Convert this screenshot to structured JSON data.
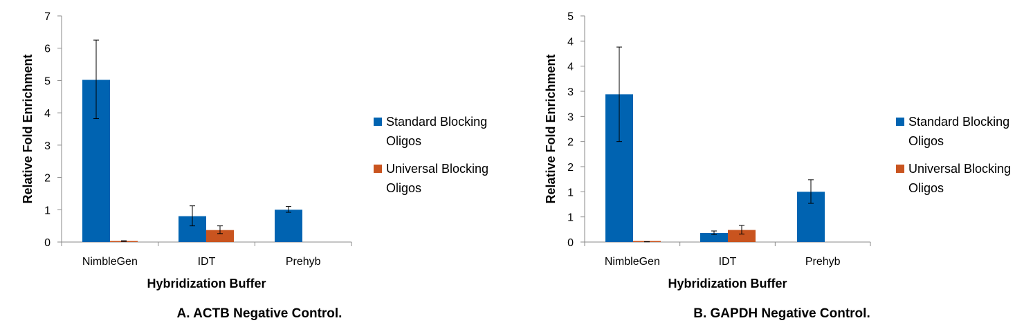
{
  "colors": {
    "standard": "#0063B1",
    "universal": "#C9541F",
    "axis": "#888888",
    "error": "#000000"
  },
  "chart_data": [
    {
      "type": "bar",
      "caption": "A. ACTB Negative Control.",
      "xlabel": "Hybridization Buffer",
      "ylabel": "Relative Fold Enrichment",
      "categories": [
        "NimbleGen",
        "IDT",
        "Prehyb"
      ],
      "ylim": [
        0,
        7
      ],
      "yticks": [
        0,
        1,
        2,
        3,
        4,
        5,
        6,
        7
      ],
      "ytick_labels": [
        "0",
        "1",
        "2",
        "3",
        "4",
        "5",
        "6",
        "7"
      ],
      "series": [
        {
          "name": "Standard Blocking Oligos",
          "legend_lines": [
            "Standard Blocking",
            "Oligos"
          ],
          "values": [
            5.02,
            0.8,
            1.0
          ],
          "err_low": [
            3.82,
            0.5,
            0.92
          ],
          "err_high": [
            6.25,
            1.12,
            1.1
          ]
        },
        {
          "name": "Universal Blocking Oligos",
          "legend_lines": [
            "Universal Blocking",
            "Oligos"
          ],
          "values": [
            0.03,
            0.37,
            null
          ],
          "err_low": [
            0.02,
            0.26,
            null
          ],
          "err_high": [
            0.04,
            0.5,
            null
          ]
        }
      ]
    },
    {
      "type": "bar",
      "caption": "B. GAPDH Negative Control.",
      "xlabel": "Hybridization Buffer",
      "ylabel": "Relative Fold Enrichment",
      "categories": [
        "NimbleGen",
        "IDT",
        "Prehyb"
      ],
      "ylim": [
        0,
        4.5
      ],
      "yticks": [
        0,
        0.5,
        1,
        1.5,
        2,
        2.5,
        3,
        3.5,
        4,
        4.5
      ],
      "ytick_labels": [
        "0",
        "1",
        "1",
        "2",
        "2",
        "3",
        "3",
        "4",
        "4",
        "5"
      ],
      "series": [
        {
          "name": "Standard Blocking Oligos",
          "legend_lines": [
            "Standard Blocking",
            "Oligos"
          ],
          "values": [
            2.94,
            0.18,
            1.0
          ],
          "err_low": [
            2.0,
            0.15,
            0.77
          ],
          "err_high": [
            3.88,
            0.22,
            1.24
          ]
        },
        {
          "name": "Universal Blocking Oligos",
          "legend_lines": [
            "Universal Blocking",
            "Oligos"
          ],
          "values": [
            0.005,
            0.24,
            null
          ],
          "err_low": [
            0.004,
            0.16,
            null
          ],
          "err_high": [
            0.006,
            0.33,
            null
          ]
        }
      ]
    }
  ]
}
